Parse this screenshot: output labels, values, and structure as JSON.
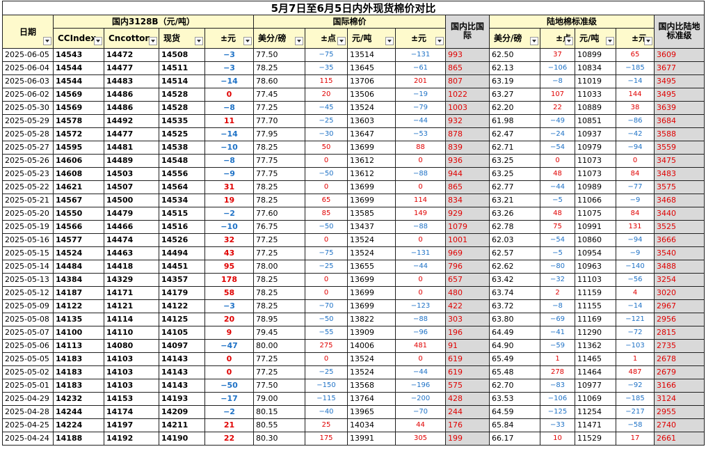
{
  "title": "5月7日至6月5日内外现货棉价对比",
  "groups": {
    "domestic": "国内3128B（元/吨）",
    "international": "国际棉价",
    "ratio_intl": "国内比国际",
    "inland": "陆地棉标准级",
    "ratio_inland": "国内比陆地标准级"
  },
  "headers": [
    "日期",
    "CCIndex",
    "Cncotton",
    "现货",
    "±元",
    "美分/磅",
    "±点",
    "元/吨",
    "±元",
    "国内比国际",
    "美分/磅",
    "±点",
    "元/吨",
    "±元",
    "国内比陆地标准级"
  ],
  "colors": {
    "positive": "#e00000",
    "negative": "#1f72c6",
    "header_bg": "#fefacc",
    "ratio_bg": "#d9d9d9"
  },
  "rows": [
    [
      "2025-06-05",
      "14543",
      "14472",
      "14508",
      "-3",
      "77.50",
      "-75",
      "13514",
      "-131",
      "993",
      "62.50",
      "37",
      "10899",
      "65",
      "3609"
    ],
    [
      "2025-06-04",
      "14544",
      "14477",
      "14511",
      "-3",
      "78.25",
      "-35",
      "13645",
      "-61",
      "865",
      "62.13",
      "-106",
      "10834",
      "-185",
      "3677"
    ],
    [
      "2025-06-03",
      "14544",
      "14483",
      "14514",
      "-14",
      "78.60",
      "115",
      "13706",
      "201",
      "807",
      "63.19",
      "-8",
      "11019",
      "-14",
      "3495"
    ],
    [
      "2025-06-02",
      "14569",
      "14486",
      "14528",
      "0",
      "77.45",
      "20",
      "13506",
      "-19",
      "1022",
      "63.27",
      "107",
      "11033",
      "144",
      "3495"
    ],
    [
      "2025-05-30",
      "14569",
      "14486",
      "14528",
      "-8",
      "77.25",
      "-45",
      "13524",
      "-79",
      "1003",
      "62.20",
      "22",
      "10889",
      "38",
      "3639"
    ],
    [
      "2025-05-29",
      "14578",
      "14492",
      "14535",
      "11",
      "77.70",
      "-25",
      "13603",
      "-44",
      "932",
      "61.98",
      "-49",
      "10851",
      "-86",
      "3684"
    ],
    [
      "2025-05-28",
      "14572",
      "14477",
      "14525",
      "-14",
      "77.95",
      "-30",
      "13647",
      "-53",
      "878",
      "62.47",
      "-24",
      "10937",
      "-42",
      "3588"
    ],
    [
      "2025-05-27",
      "14595",
      "14481",
      "14538",
      "-10",
      "78.25",
      "50",
      "13699",
      "88",
      "839",
      "62.71",
      "-54",
      "10979",
      "-94",
      "3559"
    ],
    [
      "2025-05-26",
      "14606",
      "14489",
      "14548",
      "-8",
      "77.75",
      "0",
      "13612",
      "0",
      "936",
      "63.25",
      "0",
      "11073",
      "0",
      "3475"
    ],
    [
      "2025-05-23",
      "14608",
      "14503",
      "14556",
      "-9",
      "77.75",
      "-50",
      "13612",
      "-88",
      "944",
      "63.25",
      "48",
      "11073",
      "84",
      "3483"
    ],
    [
      "2025-05-22",
      "14621",
      "14507",
      "14564",
      "31",
      "78.25",
      "0",
      "13699",
      "0",
      "865",
      "62.77",
      "-44",
      "10989",
      "-77",
      "3575"
    ],
    [
      "2025-05-21",
      "14567",
      "14500",
      "14534",
      "19",
      "78.25",
      "65",
      "13699",
      "114",
      "834",
      "63.21",
      "-5",
      "11066",
      "-9",
      "3468"
    ],
    [
      "2025-05-20",
      "14550",
      "14479",
      "14515",
      "-2",
      "77.60",
      "85",
      "13585",
      "149",
      "929",
      "63.26",
      "48",
      "11075",
      "84",
      "3440"
    ],
    [
      "2025-05-19",
      "14566",
      "14466",
      "14516",
      "-10",
      "76.75",
      "-50",
      "13437",
      "-88",
      "1079",
      "62.78",
      "75",
      "10991",
      "131",
      "3525"
    ],
    [
      "2025-05-16",
      "14577",
      "14474",
      "14526",
      "32",
      "77.25",
      "0",
      "13524",
      "0",
      "1001",
      "62.03",
      "-54",
      "10860",
      "-94",
      "3666"
    ],
    [
      "2025-05-15",
      "14524",
      "14463",
      "14494",
      "43",
      "77.25",
      "-75",
      "13524",
      "-131",
      "969",
      "62.57",
      "-5",
      "10954",
      "-9",
      "3540"
    ],
    [
      "2025-05-14",
      "14484",
      "14418",
      "14451",
      "95",
      "78.00",
      "-25",
      "13655",
      "-44",
      "796",
      "62.62",
      "-80",
      "10963",
      "-140",
      "3488"
    ],
    [
      "2025-05-13",
      "14384",
      "14329",
      "14357",
      "178",
      "78.25",
      "0",
      "13699",
      "0",
      "657",
      "63.42",
      "-32",
      "11103",
      "-56",
      "3254"
    ],
    [
      "2025-05-12",
      "14187",
      "14171",
      "14179",
      "58",
      "78.25",
      "0",
      "13699",
      "0",
      "480",
      "63.74",
      "2",
      "11159",
      "4",
      "3020"
    ],
    [
      "2025-05-09",
      "14122",
      "14121",
      "14122",
      "-3",
      "78.25",
      "-70",
      "13699",
      "-123",
      "422",
      "63.72",
      "-8",
      "11155",
      "-14",
      "2967"
    ],
    [
      "2025-05-08",
      "14135",
      "14114",
      "14125",
      "20",
      "78.95",
      "-50",
      "13822",
      "-88",
      "303",
      "63.80",
      "-69",
      "11169",
      "-121",
      "2956"
    ],
    [
      "2025-05-07",
      "14100",
      "14110",
      "14105",
      "9",
      "79.45",
      "-55",
      "13909",
      "-96",
      "196",
      "64.49",
      "-41",
      "11290",
      "-72",
      "2815"
    ],
    [
      "2025-05-06",
      "14113",
      "14080",
      "14097",
      "-47",
      "80.00",
      "275",
      "14006",
      "481",
      "91",
      "64.90",
      "-59",
      "11362",
      "-103",
      "2735"
    ],
    [
      "2025-05-05",
      "14183",
      "14103",
      "14143",
      "0",
      "77.25",
      "0",
      "13524",
      "0",
      "619",
      "65.49",
      "1",
      "11465",
      "1",
      "2678"
    ],
    [
      "2025-05-02",
      "14183",
      "14103",
      "14143",
      "0",
      "77.25",
      "-25",
      "13524",
      "-44",
      "619",
      "65.48",
      "278",
      "11464",
      "487",
      "2679"
    ],
    [
      "2025-05-01",
      "14183",
      "14103",
      "14143",
      "-50",
      "77.50",
      "-150",
      "13568",
      "-196",
      "575",
      "62.70",
      "-83",
      "10977",
      "-92",
      "3166"
    ],
    [
      "2025-04-29",
      "14232",
      "14153",
      "14193",
      "-17",
      "79.00",
      "-115",
      "13764",
      "-200",
      "428",
      "63.53",
      "-106",
      "11069",
      "-185",
      "3124"
    ],
    [
      "2025-04-28",
      "14244",
      "14174",
      "14209",
      "-2",
      "80.15",
      "-40",
      "13965",
      "-70",
      "244",
      "64.59",
      "-125",
      "11254",
      "-217",
      "2955"
    ],
    [
      "2025-04-25",
      "14224",
      "14197",
      "14211",
      "21",
      "80.55",
      "25",
      "14034",
      "44",
      "176",
      "65.84",
      "-33",
      "11471",
      "-58",
      "2740"
    ],
    [
      "2025-04-24",
      "14188",
      "14192",
      "14190",
      "22",
      "80.30",
      "175",
      "13991",
      "305",
      "199",
      "66.17",
      "10",
      "11529",
      "17",
      "2661"
    ]
  ]
}
